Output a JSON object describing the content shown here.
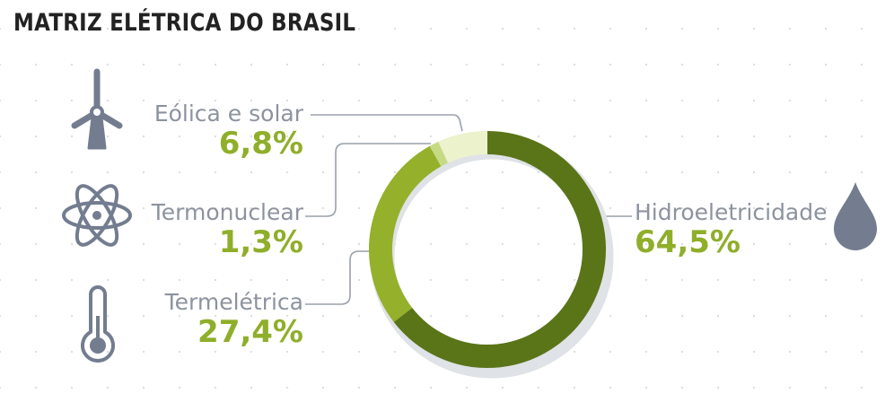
{
  "title": "MATRIZ ELÉTRICA DO BRASIL",
  "colors": {
    "label_text": "#8c939f",
    "value_text": "#8fae2a",
    "leader_line": "#9aa0ab",
    "icon": "#737d8f",
    "ring_shadow": "#dfe2e6"
  },
  "chart_data": {
    "type": "pie",
    "variant": "donut",
    "title": "MATRIZ ELÉTRICA DO BRASIL",
    "slices": [
      {
        "name": "Hidroeletricidade",
        "value": 64.5,
        "display": "64,5%",
        "color": "#5a7418",
        "icon": "water-drop-icon"
      },
      {
        "name": "Termelétrica",
        "value": 27.4,
        "display": "27,4%",
        "color": "#95b02a",
        "icon": "thermometer-icon"
      },
      {
        "name": "Termonuclear",
        "value": 1.3,
        "display": "1,3%",
        "color": "#c6da86",
        "icon": "atom-icon"
      },
      {
        "name": "Eólica e solar",
        "value": 6.8,
        "display": "6,8%",
        "color": "#ecf2cc",
        "icon": "wind-turbine-icon"
      }
    ]
  }
}
